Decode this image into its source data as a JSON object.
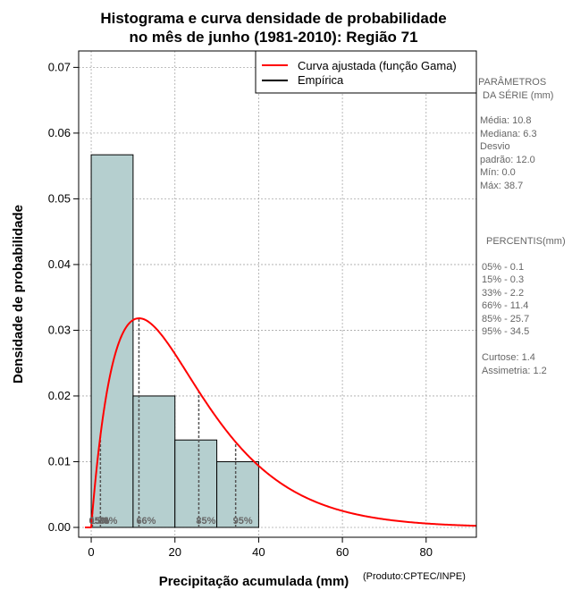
{
  "chart_data": {
    "type": "bar",
    "title_lines": [
      "Histograma e curva densidade de probabilidade",
      "no mês de junho (1981-2010): Região 71"
    ],
    "xlabel": "Precipitação acumulada (mm)",
    "ylabel": "Densidade de probabilidade",
    "credit": "(Produto:CPTEC/INPE)",
    "xlim": [
      -3,
      92
    ],
    "ylim": [
      -0.0015,
      0.0725
    ],
    "x_ticks": [
      0,
      20,
      40,
      60,
      80
    ],
    "y_ticks": [
      0.0,
      0.01,
      0.02,
      0.03,
      0.04,
      0.05,
      0.06,
      0.07
    ],
    "y_tick_labels": [
      "0.00",
      "0.01",
      "0.02",
      "0.03",
      "0.04",
      "0.05",
      "0.06",
      "0.07"
    ],
    "grid": true,
    "bins": [
      {
        "start": 0,
        "end": 10,
        "density": 0.0567
      },
      {
        "start": 10,
        "end": 20,
        "density": 0.02
      },
      {
        "start": 20,
        "end": 30,
        "density": 0.0133
      },
      {
        "start": 30,
        "end": 40,
        "density": 0.01
      }
    ],
    "curve": {
      "name": "Curva ajustada (função Gama)",
      "shape": 1.98,
      "scale": 11.66,
      "color": "#ff0000"
    },
    "legend": {
      "placement": "top-right",
      "entries": [
        {
          "label": "Curva ajustada (função Gama)",
          "color": "#ff0000"
        },
        {
          "label": "Empírica",
          "color": "#000000"
        }
      ]
    },
    "percentiles": [
      {
        "label": "05%",
        "value": 0.1
      },
      {
        "label": "15%",
        "value": 0.3
      },
      {
        "label": "33%",
        "value": 2.2
      },
      {
        "label": "66%",
        "value": 11.4
      },
      {
        "label": "85%",
        "value": 25.7
      },
      {
        "label": "95%",
        "value": 34.5
      }
    ],
    "percentile_marker_labels": [
      "05%",
      "15%",
      "33%",
      "66%",
      "85%",
      "95%"
    ]
  },
  "side_panel": {
    "params_title_1": "PARÂMETROS",
    "params_title_2": "DA SÉRIE (mm)",
    "media": "Média:  10.8",
    "mediana": "Mediana:  6.3",
    "desvio_1": "Desvio",
    "desvio_2": "padrão:  12.0",
    "min": "Mín:  0.0",
    "max": "Máx:  38.7",
    "percentis_title": "PERCENTIS(mm)",
    "p05": "05% -   0.1",
    "p15": "15% -   0.3",
    "p33": "33% -   2.2",
    "p66": "66% -   11.4",
    "p85": "85% -   25.7",
    "p95": "95% -   34.5",
    "curtose": "Curtose:  1.4",
    "assimetria": "Assimetria:  1.2"
  },
  "colors": {
    "bar_fill": "#b5cfcf",
    "grid": "#a8a8a8",
    "percentile_line": "#555555",
    "side_text": "#666666"
  }
}
